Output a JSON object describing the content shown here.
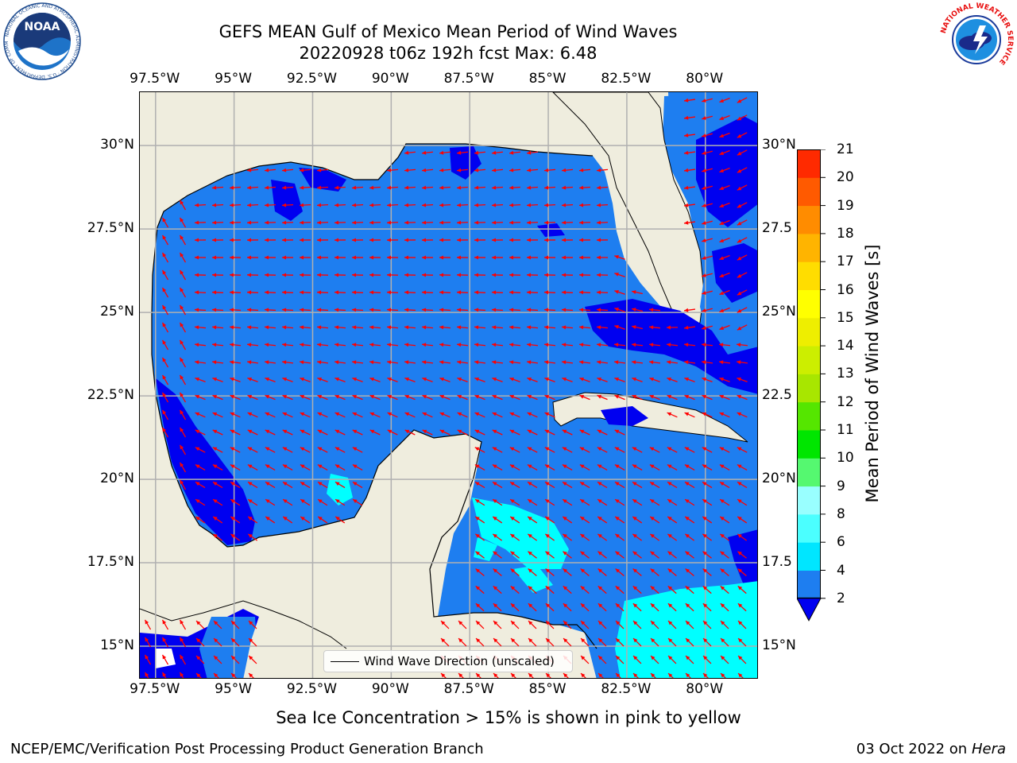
{
  "title": {
    "line1": "GEFS MEAN Gulf of Mexico Mean Period of Wind Waves",
    "line2": "20220928 t06z 192h fcst   Max: 6.48"
  },
  "map": {
    "lon_labels": [
      "97.5°W",
      "95°W",
      "92.5°W",
      "90°W",
      "87.5°W",
      "85°W",
      "82.5°W",
      "80°W"
    ],
    "lat_labels_left": [
      "30°N",
      "27.5°N",
      "25°N",
      "22.5°N",
      "20°N",
      "17.5°N",
      "15°N"
    ],
    "lat_labels_right": [
      "30°N",
      "27.5",
      "25°N",
      "22.5",
      "20°N",
      "17.5",
      "15°N"
    ],
    "lon_range": [
      -98,
      -78.3
    ],
    "lat_range": [
      14,
      31.6
    ],
    "colors": {
      "land": "#efedde",
      "period_2_4": "#1e7ef0",
      "period_below_2": "#0000f0",
      "period_4_6": "#00ffff",
      "arrow": "#ff0000",
      "grid": "#b0b0b0",
      "coast": "#000000"
    }
  },
  "legend": {
    "label": "Wind Wave Direction (unscaled)"
  },
  "colorbar": {
    "label": "Mean Period of Wind Waves [s]",
    "ticks": [
      "2",
      "4",
      "6",
      "8",
      "9",
      "10",
      "11",
      "12",
      "13",
      "14",
      "15",
      "16",
      "17",
      "18",
      "19",
      "20",
      "21"
    ],
    "colors": [
      "#1e7ef0",
      "#00e6ff",
      "#4bffff",
      "#99ffff",
      "#55f870",
      "#00e600",
      "#55e600",
      "#a8e600",
      "#ccee00",
      "#eeee00",
      "#ffff00",
      "#ffdd00",
      "#ffb400",
      "#ff8c00",
      "#ff5a00",
      "#ff2a00"
    ],
    "extend_color": "#0000f0"
  },
  "subtitle": "Sea Ice Concentration > 15% is shown in pink to yellow",
  "footer": {
    "left": "NCEP/EMC/Verification Post Processing Product Generation Branch",
    "right_date": "03 Oct 2022 on ",
    "right_host": "Hera"
  },
  "logos": {
    "noaa": "NOAA",
    "noaa_ring": "NATIONAL OCEANIC AND ATMOSPHERIC ADMINISTRATION · U.S. DEPARTMENT OF COMMERCE",
    "nws_ring": "NATIONAL WEATHER SERVICE"
  }
}
